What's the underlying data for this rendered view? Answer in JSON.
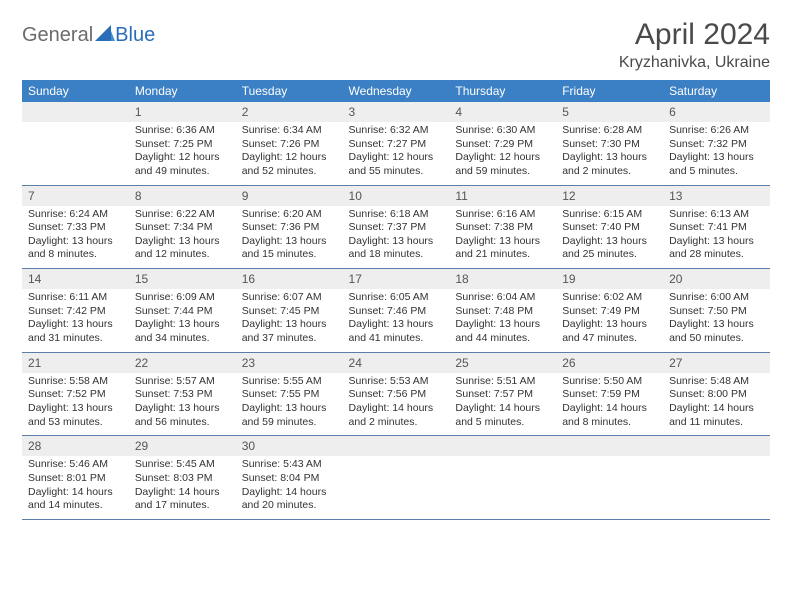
{
  "logo": {
    "general": "General",
    "blue": "Blue"
  },
  "title": "April 2024",
  "location": "Kryzhanivka, Ukraine",
  "colors": {
    "header_bg": "#3b7fc4",
    "header_text": "#ffffff",
    "daynum_bg": "#eeeeee",
    "daynum_text": "#555555",
    "cell_border": "#5a7fa8",
    "body_text": "#333333",
    "logo_gray": "#6b6b6b",
    "logo_blue": "#2a6db8",
    "title_color": "#4a4a4a"
  },
  "weekdays": [
    "Sunday",
    "Monday",
    "Tuesday",
    "Wednesday",
    "Thursday",
    "Friday",
    "Saturday"
  ],
  "weeks": [
    [
      {
        "n": "",
        "sr": "",
        "ss": "",
        "dl": ""
      },
      {
        "n": "1",
        "sr": "Sunrise: 6:36 AM",
        "ss": "Sunset: 7:25 PM",
        "dl": "Daylight: 12 hours and 49 minutes."
      },
      {
        "n": "2",
        "sr": "Sunrise: 6:34 AM",
        "ss": "Sunset: 7:26 PM",
        "dl": "Daylight: 12 hours and 52 minutes."
      },
      {
        "n": "3",
        "sr": "Sunrise: 6:32 AM",
        "ss": "Sunset: 7:27 PM",
        "dl": "Daylight: 12 hours and 55 minutes."
      },
      {
        "n": "4",
        "sr": "Sunrise: 6:30 AM",
        "ss": "Sunset: 7:29 PM",
        "dl": "Daylight: 12 hours and 59 minutes."
      },
      {
        "n": "5",
        "sr": "Sunrise: 6:28 AM",
        "ss": "Sunset: 7:30 PM",
        "dl": "Daylight: 13 hours and 2 minutes."
      },
      {
        "n": "6",
        "sr": "Sunrise: 6:26 AM",
        "ss": "Sunset: 7:32 PM",
        "dl": "Daylight: 13 hours and 5 minutes."
      }
    ],
    [
      {
        "n": "7",
        "sr": "Sunrise: 6:24 AM",
        "ss": "Sunset: 7:33 PM",
        "dl": "Daylight: 13 hours and 8 minutes."
      },
      {
        "n": "8",
        "sr": "Sunrise: 6:22 AM",
        "ss": "Sunset: 7:34 PM",
        "dl": "Daylight: 13 hours and 12 minutes."
      },
      {
        "n": "9",
        "sr": "Sunrise: 6:20 AM",
        "ss": "Sunset: 7:36 PM",
        "dl": "Daylight: 13 hours and 15 minutes."
      },
      {
        "n": "10",
        "sr": "Sunrise: 6:18 AM",
        "ss": "Sunset: 7:37 PM",
        "dl": "Daylight: 13 hours and 18 minutes."
      },
      {
        "n": "11",
        "sr": "Sunrise: 6:16 AM",
        "ss": "Sunset: 7:38 PM",
        "dl": "Daylight: 13 hours and 21 minutes."
      },
      {
        "n": "12",
        "sr": "Sunrise: 6:15 AM",
        "ss": "Sunset: 7:40 PM",
        "dl": "Daylight: 13 hours and 25 minutes."
      },
      {
        "n": "13",
        "sr": "Sunrise: 6:13 AM",
        "ss": "Sunset: 7:41 PM",
        "dl": "Daylight: 13 hours and 28 minutes."
      }
    ],
    [
      {
        "n": "14",
        "sr": "Sunrise: 6:11 AM",
        "ss": "Sunset: 7:42 PM",
        "dl": "Daylight: 13 hours and 31 minutes."
      },
      {
        "n": "15",
        "sr": "Sunrise: 6:09 AM",
        "ss": "Sunset: 7:44 PM",
        "dl": "Daylight: 13 hours and 34 minutes."
      },
      {
        "n": "16",
        "sr": "Sunrise: 6:07 AM",
        "ss": "Sunset: 7:45 PM",
        "dl": "Daylight: 13 hours and 37 minutes."
      },
      {
        "n": "17",
        "sr": "Sunrise: 6:05 AM",
        "ss": "Sunset: 7:46 PM",
        "dl": "Daylight: 13 hours and 41 minutes."
      },
      {
        "n": "18",
        "sr": "Sunrise: 6:04 AM",
        "ss": "Sunset: 7:48 PM",
        "dl": "Daylight: 13 hours and 44 minutes."
      },
      {
        "n": "19",
        "sr": "Sunrise: 6:02 AM",
        "ss": "Sunset: 7:49 PM",
        "dl": "Daylight: 13 hours and 47 minutes."
      },
      {
        "n": "20",
        "sr": "Sunrise: 6:00 AM",
        "ss": "Sunset: 7:50 PM",
        "dl": "Daylight: 13 hours and 50 minutes."
      }
    ],
    [
      {
        "n": "21",
        "sr": "Sunrise: 5:58 AM",
        "ss": "Sunset: 7:52 PM",
        "dl": "Daylight: 13 hours and 53 minutes."
      },
      {
        "n": "22",
        "sr": "Sunrise: 5:57 AM",
        "ss": "Sunset: 7:53 PM",
        "dl": "Daylight: 13 hours and 56 minutes."
      },
      {
        "n": "23",
        "sr": "Sunrise: 5:55 AM",
        "ss": "Sunset: 7:55 PM",
        "dl": "Daylight: 13 hours and 59 minutes."
      },
      {
        "n": "24",
        "sr": "Sunrise: 5:53 AM",
        "ss": "Sunset: 7:56 PM",
        "dl": "Daylight: 14 hours and 2 minutes."
      },
      {
        "n": "25",
        "sr": "Sunrise: 5:51 AM",
        "ss": "Sunset: 7:57 PM",
        "dl": "Daylight: 14 hours and 5 minutes."
      },
      {
        "n": "26",
        "sr": "Sunrise: 5:50 AM",
        "ss": "Sunset: 7:59 PM",
        "dl": "Daylight: 14 hours and 8 minutes."
      },
      {
        "n": "27",
        "sr": "Sunrise: 5:48 AM",
        "ss": "Sunset: 8:00 PM",
        "dl": "Daylight: 14 hours and 11 minutes."
      }
    ],
    [
      {
        "n": "28",
        "sr": "Sunrise: 5:46 AM",
        "ss": "Sunset: 8:01 PM",
        "dl": "Daylight: 14 hours and 14 minutes."
      },
      {
        "n": "29",
        "sr": "Sunrise: 5:45 AM",
        "ss": "Sunset: 8:03 PM",
        "dl": "Daylight: 14 hours and 17 minutes."
      },
      {
        "n": "30",
        "sr": "Sunrise: 5:43 AM",
        "ss": "Sunset: 8:04 PM",
        "dl": "Daylight: 14 hours and 20 minutes."
      },
      {
        "n": "",
        "sr": "",
        "ss": "",
        "dl": ""
      },
      {
        "n": "",
        "sr": "",
        "ss": "",
        "dl": ""
      },
      {
        "n": "",
        "sr": "",
        "ss": "",
        "dl": ""
      },
      {
        "n": "",
        "sr": "",
        "ss": "",
        "dl": ""
      }
    ]
  ]
}
